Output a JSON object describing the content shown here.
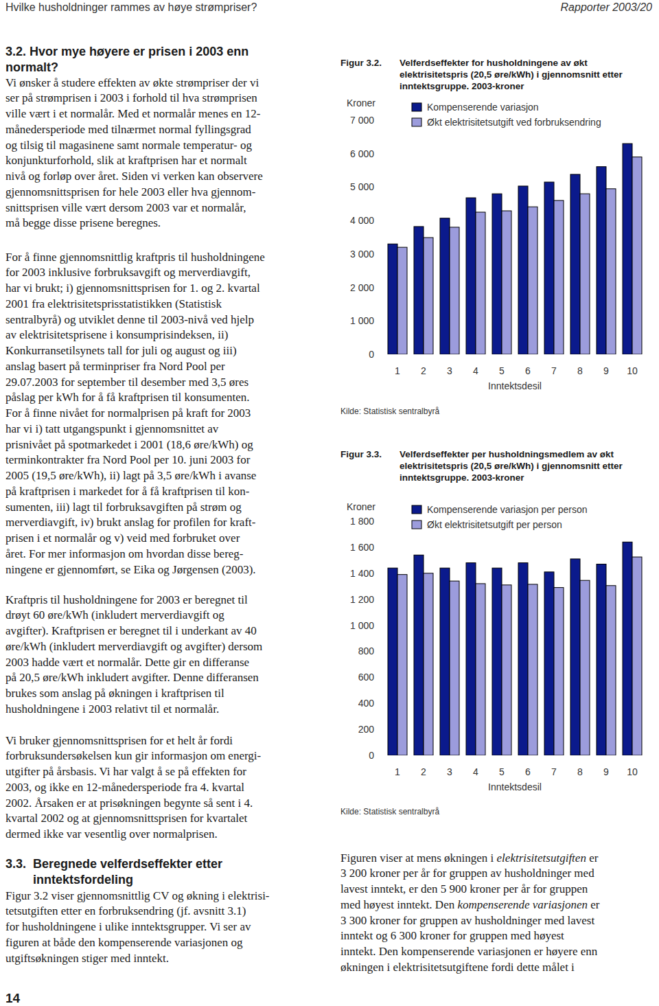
{
  "header": {
    "left": "Hvilke husholdninger rammes av høye strømpriser?",
    "right": "Rapporter 2003/20"
  },
  "section_3_2": {
    "number": "3.2.",
    "heading": [
      "Hvor mye høyere er prisen i 2003 enn",
      "normalt?"
    ],
    "paragraphs": [
      [
        "Vi ønsker å studere effekten av økte strømpriser der vi",
        "ser på strømprisen i 2003 i forhold til hva strømprisen",
        "ville vært i et normalår. Med et normalår menes en 12-",
        "månedersperiode med tilnærmet normal fyllingsgrad",
        "og tilsig til magasinene samt normale temperatur- og",
        "konjunkturforhold, slik at kraftprisen har et normalt",
        "nivå og forløp over året. Siden vi verken kan observere",
        "gjennomsnittsprisen for hele 2003 eller hva gjennom-",
        "snittsprisen ville vært dersom 2003 var et normalår,",
        "må begge disse prisene beregnes."
      ],
      [
        "For å finne gjennomsnittlig kraftpris til husholdningene",
        "for 2003 inklusive forbruksavgift og merverdiavgift,",
        "har vi brukt; i) gjennomsnittsprisen for 1. og 2. kvartal",
        "2001 fra elektrisitetsprisstatistikken (Statistisk",
        "sentralbyrå) og utviklet denne til 2003-nivå ved hjelp",
        "av elektrisitetsprisene i konsumprisindeksen, ii)",
        "Konkurransetilsynets tall for juli og august og iii)",
        "anslag basert på terminpriser fra Nord Pool per",
        "29.07.2003 for september til desember med 3,5 øres",
        "påslag per kWh for å få kraftprisen til konsumenten.",
        "For å finne nivået for normalprisen på kraft for 2003",
        "har vi i) tatt utgangspunkt i gjennomsnittet av",
        "prisnivået på spotmarkedet i 2001 (18,6 øre/kWh) og",
        "terminkontrakter fra Nord Pool per 10. juni 2003 for",
        "2005 (19,5 øre/kWh), ii) lagt på 3,5 øre/kWh i avanse",
        "på kraftprisen i markedet for å få kraftprisen til kon-",
        "sumenten, iii) lagt til forbruksavgiften på strøm og",
        "merverdiavgift, iv) brukt anslag for profilen for kraft-",
        "prisen i et normalår og v) veid med forbruket over",
        "året. For mer informasjon om hvordan disse bereg-",
        "ningene er gjennomført, se Eika og Jørgensen (2003)."
      ],
      [
        "Kraftpris til husholdningene for 2003 er beregnet til",
        "drøyt 60 øre/kWh (inkludert merverdiavgift og",
        "avgifter). Kraftprisen er beregnet til i underkant av 40",
        "øre/kWh (inkludert merverdiavgift og avgifter) dersom",
        "2003 hadde vært et normalår. Dette gir en differanse",
        "på 20,5 øre/kWh inkludert avgifter. Denne differansen",
        "brukes som anslag på økningen i kraftprisen til",
        "husholdningene i 2003 relativt til et normalår."
      ],
      [
        "Vi bruker gjennomsnittsprisen for et helt år fordi",
        "forbruksundersøkelsen kun gir informasjon om energi-",
        "utgifter på årsbasis. Vi har valgt å se på effekten for",
        "2003, og ikke en 12-månedersperiode fra 4. kvartal",
        "2002. Årsaken er at prisøkningen begynte så sent i 4.",
        "kvartal 2002 og at gjennomsnittsprisen for kvartalet",
        "dermed ikke var vesentlig over normalprisen."
      ]
    ]
  },
  "section_3_3": {
    "number": "3.3.",
    "heading": [
      "Beregnede velferdseffekter etter",
      "inntektsfordeling"
    ],
    "paragraphs": [
      [
        "Figur 3.2 viser gjennomsnittlig CV og økning i elektrisi-",
        "tetsutgiften etter en forbruksendring (jf. avsnitt 3.1)",
        "for husholdningene i ulike inntektsgrupper. Vi ser av",
        "figuren at både den kompenserende variasjonen og",
        "utgiftsøkningen stiger med inntekt."
      ]
    ]
  },
  "right_column": {
    "paragraphs": [
      [
        [
          "Figuren viser at mens økningen i ",
          "elektrisitetsutgiften",
          " er"
        ],
        "3 200 kroner per år for gruppen av husholdninger med",
        "lavest inntekt, er den 5 900 kroner per år for gruppen",
        [
          "med høyest inntekt. Den ",
          "kompenserende variasjonen",
          " er"
        ],
        "3 300 kroner for gruppen av husholdninger med lavest",
        "inntekt og 6 300 kroner for gruppen med høyest",
        "inntekt. Den kompenserende variasjonen er høyere enn",
        "økningen i elektrisitetsutgiftene fordi dette målet i"
      ]
    ]
  },
  "page_number": "14",
  "chart_data": [
    {
      "type": "bar",
      "title": "Velferdseffekter for husholdningene av økt elektrisitetspris (20,5 øre/kWh) i gjennomsnitt etter inntektsgruppe. 2003-kroner",
      "annotations": [
        "Figur 3.2.",
        "Kilde: Statistisk sentralbyrå"
      ],
      "ylabel": "Kroner",
      "xlabel": "Inntektsdesil",
      "categories": [
        1,
        2,
        3,
        4,
        5,
        6,
        7,
        8,
        9,
        10
      ],
      "series": [
        {
          "name": "Kompenserende variasjon",
          "color": "#0b1a8c",
          "values": [
            3300,
            3820,
            4070,
            4680,
            4800,
            5030,
            5150,
            5380,
            5610,
            6300
          ]
        },
        {
          "name": "Økt elektrisitetsutgift ved forbruksendring",
          "color": "#9c9cdc",
          "values": [
            3200,
            3490,
            3800,
            4250,
            4290,
            4410,
            4600,
            4800,
            4950,
            5900
          ]
        }
      ],
      "ylim": [
        0,
        7000
      ],
      "yticks": [
        0,
        {
          "value": 1000,
          "label": "1 000"
        },
        {
          "value": 2000,
          "label": "2 000"
        },
        {
          "value": 3000,
          "label": "3 000"
        },
        {
          "value": 4000,
          "label": "4 000"
        },
        {
          "value": 5000,
          "label": "5 000"
        },
        {
          "value": 6000,
          "label": "6 000"
        },
        {
          "value": 7000,
          "label": "7 000"
        }
      ],
      "legend": "top-left",
      "grid": false
    },
    {
      "type": "bar",
      "title": "Velferdseffekter per husholdningsmedlem av økt elektrisitetspris (20,5 øre/kWh) i gjennomsnitt etter inntektsgruppe. 2003-kroner",
      "annotations": [
        "Figur 3.3.",
        "Kilde: Statistisk sentralbyrå"
      ],
      "ylabel": "Kroner",
      "xlabel": "Inntektsdesil",
      "categories": [
        1,
        2,
        3,
        4,
        5,
        6,
        7,
        8,
        9,
        10
      ],
      "series": [
        {
          "name": "Kompenserende variasjon per person",
          "color": "#0b1a8c",
          "values": [
            1440,
            1540,
            1440,
            1480,
            1440,
            1480,
            1410,
            1510,
            1470,
            1640
          ]
        },
        {
          "name": "Økt elektrisitetsutgift per person",
          "color": "#9c9cdc",
          "values": [
            1390,
            1400,
            1340,
            1320,
            1310,
            1315,
            1290,
            1345,
            1305,
            1525
          ]
        }
      ],
      "ylim": [
        0,
        1800
      ],
      "yticks": [
        0,
        200,
        400,
        600,
        800,
        {
          "value": 1000,
          "label": "1 000"
        },
        {
          "value": 1200,
          "label": "1 200"
        },
        {
          "value": 1400,
          "label": "1 400"
        },
        {
          "value": 1600,
          "label": "1 600"
        },
        {
          "value": 1800,
          "label": "1 800"
        }
      ],
      "legend": "top-left",
      "grid": false
    }
  ]
}
